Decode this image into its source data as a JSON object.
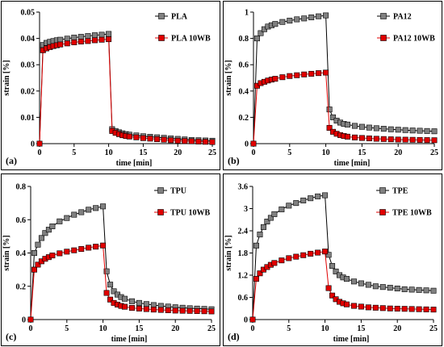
{
  "chart_data": [
    {
      "type": "line",
      "panel_label": "(a)",
      "xlabel": "time [min]",
      "ylabel": "strain [%]",
      "xlim": [
        0,
        25
      ],
      "ylim": [
        0,
        0.05
      ],
      "xticks": [
        "0",
        "5",
        "10",
        "15",
        "20",
        "25"
      ],
      "yticks": [
        "0",
        "0.01",
        "0.02",
        "0.03",
        "0.04",
        "0.05"
      ],
      "legend_position": "top-right",
      "series": [
        {
          "name": "PLA",
          "color": "#808080",
          "x": [
            0,
            0.5,
            1,
            1.5,
            2,
            2.5,
            3,
            4,
            5,
            6,
            7,
            8,
            9,
            10,
            10.5,
            11,
            11.5,
            12,
            12.5,
            13,
            14,
            15,
            16,
            17,
            18,
            19,
            20,
            21,
            22,
            23,
            24,
            25
          ],
          "y": [
            0,
            0.0375,
            0.0383,
            0.0387,
            0.039,
            0.0393,
            0.0395,
            0.0399,
            0.0403,
            0.0406,
            0.0409,
            0.0412,
            0.0414,
            0.0417,
            0.0055,
            0.0048,
            0.0043,
            0.0039,
            0.0036,
            0.0034,
            0.0031,
            0.0028,
            0.0026,
            0.0024,
            0.0022,
            0.002,
            0.0018,
            0.0016,
            0.0014,
            0.0013,
            0.0012,
            0.0011
          ]
        },
        {
          "name": "PLA 10WB",
          "color": "#e00000",
          "x": [
            0,
            0.5,
            1,
            1.5,
            2,
            2.5,
            3,
            4,
            5,
            6,
            7,
            8,
            9,
            10,
            10.5,
            11,
            11.5,
            12,
            12.5,
            13,
            14,
            15,
            16,
            17,
            18,
            19,
            20,
            21,
            22,
            23,
            24,
            25
          ],
          "y": [
            0,
            0.0355,
            0.0362,
            0.0367,
            0.0371,
            0.0374,
            0.0377,
            0.0381,
            0.0385,
            0.0388,
            0.039,
            0.0393,
            0.0395,
            0.0397,
            0.0048,
            0.0041,
            0.0036,
            0.0032,
            0.0029,
            0.0027,
            0.0024,
            0.0021,
            0.0019,
            0.0017,
            0.0015,
            0.0013,
            0.0011,
            0.001,
            0.0009,
            0.0008,
            0.0007,
            0.0006
          ]
        }
      ]
    },
    {
      "type": "line",
      "panel_label": "(b)",
      "xlabel": "time [min]",
      "ylabel": "strain [%]",
      "xlim": [
        0,
        25
      ],
      "ylim": [
        0,
        1
      ],
      "xticks": [
        "0",
        "5",
        "10",
        "15",
        "20",
        "25"
      ],
      "yticks": [
        "0",
        "0.2",
        "0.4",
        "0.6",
        "0.8",
        "1"
      ],
      "legend_position": "top-right",
      "series": [
        {
          "name": "PA12",
          "color": "#808080",
          "x": [
            0,
            0.5,
            1,
            1.5,
            2,
            2.5,
            3,
            4,
            5,
            6,
            7,
            8,
            9,
            10,
            10.5,
            11,
            11.5,
            12,
            12.5,
            13,
            14,
            15,
            16,
            17,
            18,
            19,
            20,
            21,
            22,
            23,
            24,
            25
          ],
          "y": [
            0,
            0.8,
            0.84,
            0.87,
            0.89,
            0.9,
            0.91,
            0.925,
            0.935,
            0.945,
            0.952,
            0.96,
            0.968,
            0.975,
            0.26,
            0.2,
            0.175,
            0.16,
            0.15,
            0.145,
            0.135,
            0.128,
            0.122,
            0.117,
            0.113,
            0.109,
            0.106,
            0.103,
            0.1,
            0.098,
            0.096,
            0.094
          ]
        },
        {
          "name": "PA12 10WB",
          "color": "#e00000",
          "x": [
            0,
            0.5,
            1,
            1.5,
            2,
            2.5,
            3,
            4,
            5,
            6,
            7,
            8,
            9,
            10,
            10.5,
            11,
            11.5,
            12,
            12.5,
            13,
            14,
            15,
            16,
            17,
            18,
            19,
            20,
            21,
            22,
            23,
            24,
            25
          ],
          "y": [
            0,
            0.44,
            0.46,
            0.47,
            0.48,
            0.487,
            0.493,
            0.505,
            0.514,
            0.52,
            0.526,
            0.531,
            0.536,
            0.54,
            0.12,
            0.09,
            0.075,
            0.065,
            0.058,
            0.053,
            0.047,
            0.043,
            0.04,
            0.037,
            0.035,
            0.033,
            0.031,
            0.03,
            0.029,
            0.028,
            0.027,
            0.026
          ]
        }
      ]
    },
    {
      "type": "line",
      "panel_label": "(c)",
      "xlabel": "time [min]",
      "ylabel": "strain [%]",
      "xlim": [
        0,
        25
      ],
      "ylim": [
        0,
        0.8
      ],
      "xticks": [
        "0",
        "5",
        "10",
        "15",
        "20",
        "25"
      ],
      "yticks": [
        "0",
        "0.2",
        "0.4",
        "0.6",
        "0.8"
      ],
      "legend_position": "top-right",
      "series": [
        {
          "name": "TPU",
          "color": "#808080",
          "x": [
            0,
            0.5,
            1,
            1.5,
            2,
            2.5,
            3,
            4,
            5,
            6,
            7,
            8,
            9,
            10,
            10.5,
            11,
            11.5,
            12,
            12.5,
            13,
            14,
            15,
            16,
            17,
            18,
            19,
            20,
            21,
            22,
            23,
            24,
            25
          ],
          "y": [
            0,
            0.4,
            0.45,
            0.49,
            0.52,
            0.54,
            0.56,
            0.59,
            0.61,
            0.63,
            0.645,
            0.66,
            0.67,
            0.68,
            0.29,
            0.21,
            0.17,
            0.15,
            0.135,
            0.125,
            0.11,
            0.1,
            0.093,
            0.087,
            0.082,
            0.078,
            0.074,
            0.071,
            0.068,
            0.066,
            0.064,
            0.062
          ]
        },
        {
          "name": "TPU 10WB",
          "color": "#e00000",
          "x": [
            0,
            0.5,
            1,
            1.5,
            2,
            2.5,
            3,
            4,
            5,
            6,
            7,
            8,
            9,
            10,
            10.5,
            11,
            11.5,
            12,
            12.5,
            13,
            14,
            15,
            16,
            17,
            18,
            19,
            20,
            21,
            22,
            23,
            24,
            25
          ],
          "y": [
            0,
            0.3,
            0.33,
            0.35,
            0.365,
            0.375,
            0.385,
            0.398,
            0.408,
            0.416,
            0.424,
            0.432,
            0.438,
            0.445,
            0.16,
            0.12,
            0.1,
            0.09,
            0.082,
            0.077,
            0.07,
            0.066,
            0.063,
            0.06,
            0.058,
            0.056,
            0.054,
            0.053,
            0.052,
            0.051,
            0.05,
            0.049
          ]
        }
      ]
    },
    {
      "type": "line",
      "panel_label": "(d)",
      "xlabel": "time [min]",
      "ylabel": "strain [%]",
      "xlim": [
        0,
        25
      ],
      "ylim": [
        0,
        3.6
      ],
      "xticks": [
        "0",
        "5",
        "10",
        "15",
        "20",
        "25"
      ],
      "yticks": [
        "0",
        "0.6",
        "1.2",
        "1.8",
        "2.4",
        "3",
        "3.6"
      ],
      "legend_position": "top-right",
      "series": [
        {
          "name": "TPE",
          "color": "#808080",
          "x": [
            0,
            0.5,
            1,
            1.5,
            2,
            2.5,
            3,
            4,
            5,
            6,
            7,
            8,
            9,
            10,
            10.5,
            11,
            11.5,
            12,
            12.5,
            13,
            14,
            15,
            16,
            17,
            18,
            19,
            20,
            21,
            22,
            23,
            24,
            25
          ],
          "y": [
            0,
            2.0,
            2.3,
            2.5,
            2.65,
            2.75,
            2.85,
            2.98,
            3.08,
            3.15,
            3.22,
            3.28,
            3.33,
            3.36,
            1.75,
            1.45,
            1.3,
            1.2,
            1.14,
            1.1,
            1.03,
            0.98,
            0.94,
            0.9,
            0.88,
            0.86,
            0.84,
            0.82,
            0.81,
            0.8,
            0.79,
            0.78
          ]
        },
        {
          "name": "TPE 10WB",
          "color": "#e00000",
          "x": [
            0,
            0.5,
            1,
            1.5,
            2,
            2.5,
            3,
            4,
            5,
            6,
            7,
            8,
            9,
            10,
            10.5,
            11,
            11.5,
            12,
            12.5,
            13,
            14,
            15,
            16,
            17,
            18,
            19,
            20,
            21,
            22,
            23,
            24,
            25
          ],
          "y": [
            0,
            1.1,
            1.25,
            1.35,
            1.42,
            1.48,
            1.53,
            1.6,
            1.66,
            1.7,
            1.74,
            1.78,
            1.81,
            1.84,
            0.85,
            0.65,
            0.55,
            0.48,
            0.44,
            0.41,
            0.37,
            0.35,
            0.33,
            0.32,
            0.31,
            0.3,
            0.295,
            0.29,
            0.285,
            0.28,
            0.275,
            0.27
          ]
        }
      ]
    }
  ]
}
